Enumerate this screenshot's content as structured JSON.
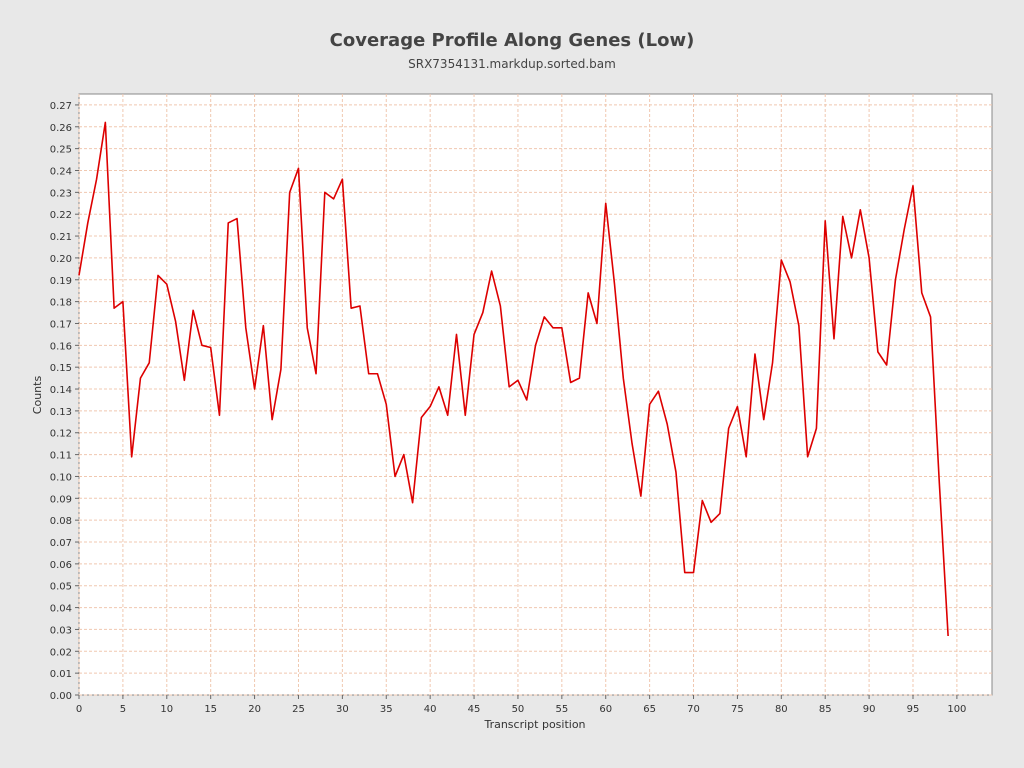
{
  "chart_data": {
    "type": "line",
    "title": "Coverage Profile Along Genes (Low)",
    "subtitle": "SRX7354131.markdup.sorted.bam",
    "xlabel": "Transcript position",
    "ylabel": "Counts",
    "xlim": [
      0,
      104
    ],
    "ylim": [
      0,
      0.275
    ],
    "grid": true,
    "x_ticks": [
      "0",
      "5",
      "10",
      "15",
      "20",
      "25",
      "30",
      "35",
      "40",
      "45",
      "50",
      "55",
      "60",
      "65",
      "70",
      "75",
      "80",
      "85",
      "90",
      "95",
      "100"
    ],
    "y_ticks": [
      "0.00",
      "0.01",
      "0.02",
      "0.03",
      "0.04",
      "0.05",
      "0.06",
      "0.07",
      "0.08",
      "0.09",
      "0.10",
      "0.11",
      "0.12",
      "0.13",
      "0.14",
      "0.15",
      "0.16",
      "0.17",
      "0.18",
      "0.19",
      "0.20",
      "0.21",
      "0.22",
      "0.23",
      "0.24",
      "0.25",
      "0.26",
      "0.27"
    ],
    "series": [
      {
        "color": "#dd0000",
        "x": [
          0,
          1,
          2,
          3,
          4,
          5,
          6,
          7,
          8,
          9,
          10,
          11,
          12,
          13,
          14,
          15,
          16,
          17,
          18,
          19,
          20,
          21,
          22,
          23,
          24,
          25,
          26,
          27,
          28,
          29,
          30,
          31,
          32,
          33,
          34,
          35,
          36,
          37,
          38,
          39,
          40,
          41,
          42,
          43,
          44,
          45,
          46,
          47,
          48,
          49,
          50,
          51,
          52,
          53,
          54,
          55,
          56,
          57,
          58,
          59,
          60,
          61,
          62,
          63,
          64,
          65,
          66,
          67,
          68,
          69,
          70,
          71,
          72,
          73,
          74,
          75,
          76,
          77,
          78,
          79,
          80,
          81,
          82,
          83,
          84,
          85,
          86,
          87,
          88,
          89,
          90,
          91,
          92,
          93,
          94,
          95,
          96,
          97,
          98,
          99
        ],
        "values": [
          0.192,
          0.216,
          0.236,
          0.262,
          0.177,
          0.18,
          0.109,
          0.145,
          0.152,
          0.192,
          0.188,
          0.171,
          0.144,
          0.176,
          0.16,
          0.159,
          0.128,
          0.216,
          0.218,
          0.168,
          0.14,
          0.169,
          0.126,
          0.149,
          0.23,
          0.241,
          0.168,
          0.147,
          0.23,
          0.227,
          0.236,
          0.177,
          0.178,
          0.147,
          0.147,
          0.133,
          0.1,
          0.11,
          0.088,
          0.127,
          0.132,
          0.141,
          0.128,
          0.165,
          0.128,
          0.165,
          0.175,
          0.194,
          0.178,
          0.141,
          0.144,
          0.135,
          0.16,
          0.173,
          0.168,
          0.168,
          0.143,
          0.145,
          0.184,
          0.17,
          0.225,
          0.188,
          0.145,
          0.115,
          0.091,
          0.133,
          0.139,
          0.124,
          0.102,
          0.056,
          0.056,
          0.089,
          0.079,
          0.083,
          0.122,
          0.132,
          0.109,
          0.156,
          0.126,
          0.152,
          0.199,
          0.189,
          0.169,
          0.109,
          0.122,
          0.217,
          0.163,
          0.219,
          0.2,
          0.222,
          0.2,
          0.157,
          0.151,
          0.19,
          0.213,
          0.233,
          0.184,
          0.173,
          0.097,
          0.027
        ]
      }
    ]
  }
}
